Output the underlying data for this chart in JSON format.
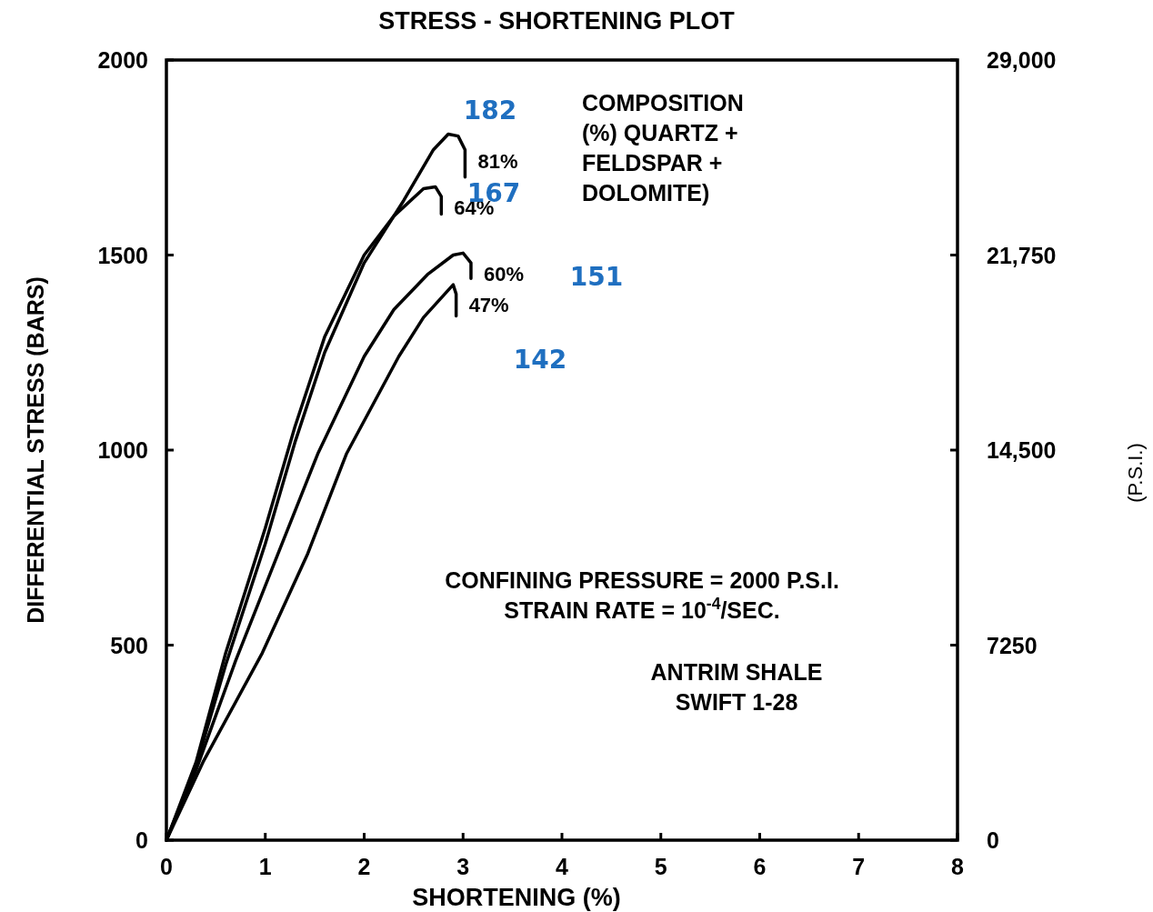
{
  "chart_data": {
    "type": "line",
    "title": "STRESS - SHORTENING PLOT",
    "xlabel": "SHORTENING (%)",
    "ylabel": "DIFFERENTIAL STRESS (BARS)",
    "y2label": "(P.S.I.)",
    "xlim": [
      0,
      8
    ],
    "xticks": [
      0,
      1,
      2,
      3,
      4,
      5,
      6,
      7,
      8
    ],
    "ylim": [
      0,
      2000
    ],
    "yticks": [
      0,
      500,
      1000,
      1500,
      2000
    ],
    "y2lim": [
      0,
      29000
    ],
    "y2ticks": [
      0,
      7250,
      {
        "value": 14500,
        "label": "14,500"
      },
      {
        "value": 21750,
        "label": "21,750"
      },
      {
        "value": 29000,
        "label": "29,000"
      }
    ],
    "grid": false,
    "legend": false,
    "marker": "none",
    "line_style": "solid",
    "series": [
      {
        "name": "81%",
        "color": "#000000",
        "x": [
          0,
          0.3,
          0.6,
          1.0,
          1.3,
          1.6,
          2.0,
          2.4,
          2.7,
          2.85,
          2.95,
          3.02,
          3.02
        ],
        "values": [
          0,
          190,
          450,
          760,
          1020,
          1250,
          1480,
          1640,
          1770,
          1810,
          1805,
          1770,
          1700
        ]
      },
      {
        "name": "64%",
        "color": "#000000",
        "x": [
          0,
          0.3,
          0.6,
          1.0,
          1.3,
          1.6,
          2.0,
          2.3,
          2.6,
          2.72,
          2.78,
          2.78
        ],
        "values": [
          0,
          200,
          480,
          800,
          1060,
          1290,
          1500,
          1600,
          1670,
          1675,
          1650,
          1605
        ]
      },
      {
        "name": "60%",
        "color": "#000000",
        "x": [
          0,
          0.3,
          0.7,
          1.13,
          1.53,
          2.0,
          2.3,
          2.64,
          2.9,
          3.0,
          3.08,
          3.08
        ],
        "values": [
          0,
          180,
          460,
          735,
          990,
          1240,
          1360,
          1450,
          1500,
          1505,
          1480,
          1440
        ]
      },
      {
        "name": "47%",
        "color": "#000000",
        "x": [
          0,
          0.37,
          0.97,
          1.43,
          1.82,
          2.35,
          2.6,
          2.9,
          2.93,
          2.93
        ],
        "values": [
          0,
          200,
          480,
          735,
          990,
          1240,
          1340,
          1424,
          1400,
          1344
        ]
      }
    ],
    "annotations": [
      "182",
      "167",
      "151",
      "142",
      "COMPOSITION\n(%) QUARTZ +\nFELDSPAR +\nDOLOMITE)",
      "CONFINING PRESSURE = 2000 P.S.I.\nSTRAIN RATE = 10$^{-4}$/SEC.",
      "ANTRIM SHALE\nSWIFT 1-28"
    ]
  }
}
